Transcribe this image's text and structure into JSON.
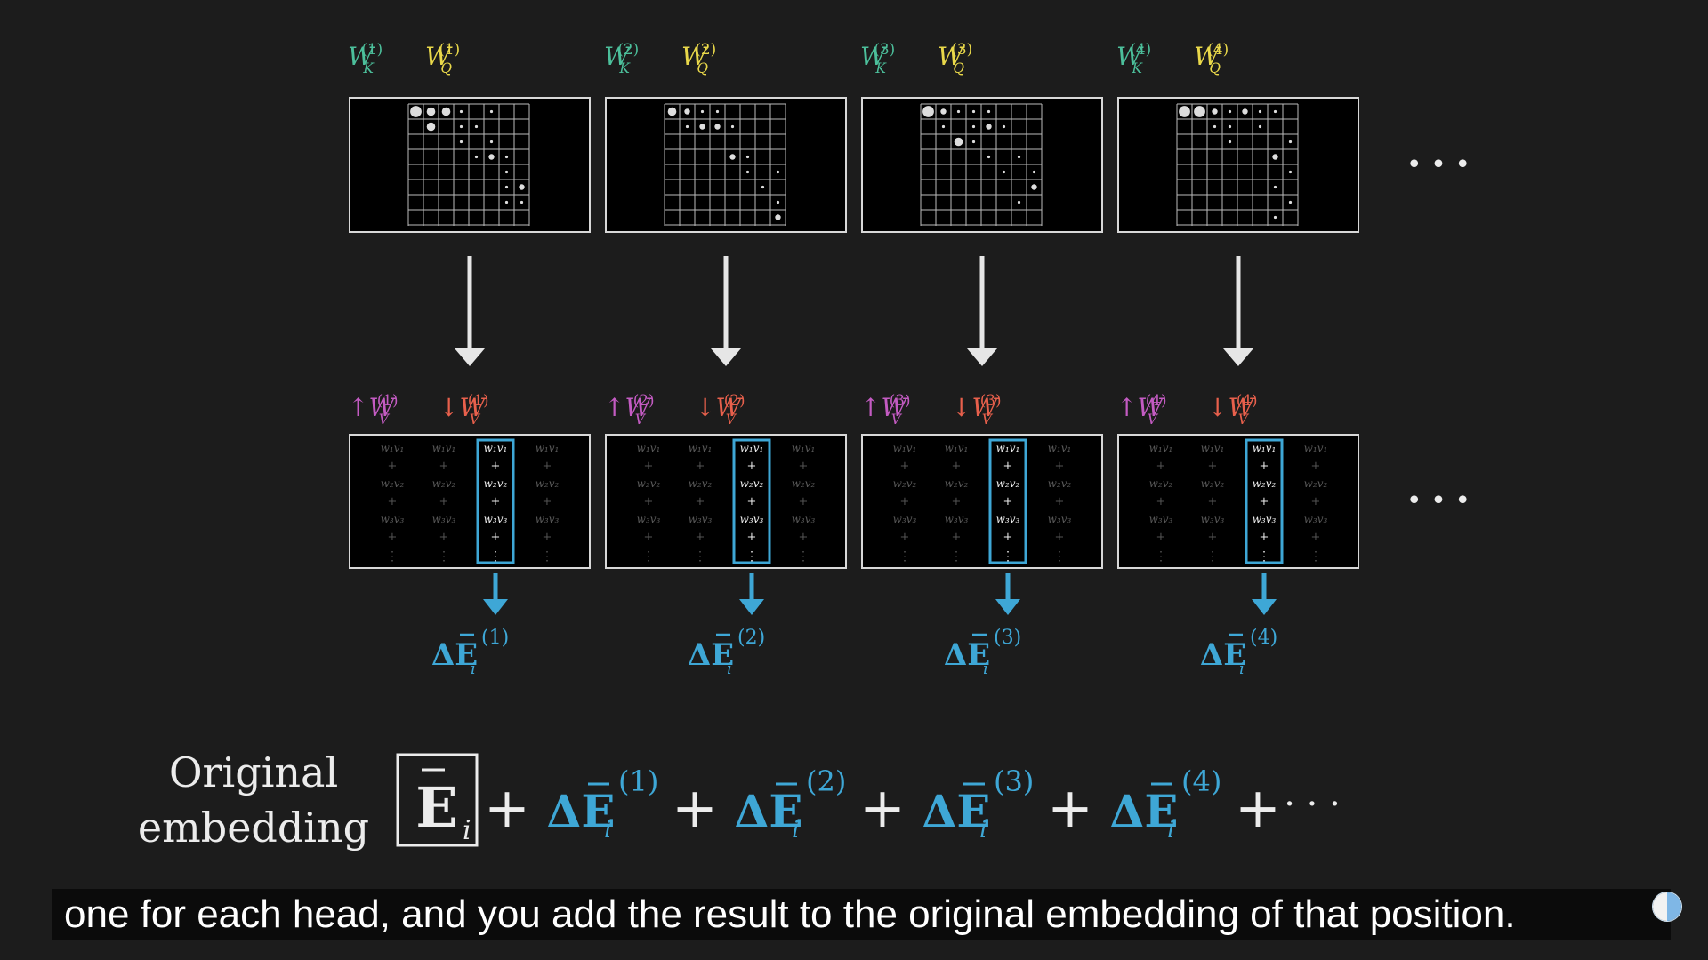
{
  "heads": [
    {
      "n": "(1)",
      "wk": "W",
      "wk_sub": "K",
      "wq": "W",
      "wq_sub": "Q",
      "vu": "↑W",
      "vu_sub": "V",
      "vd": "↓W",
      "vd_sub": "V",
      "de": "ΔE",
      "de_sub": "i"
    },
    {
      "n": "(2)",
      "wk": "W",
      "wk_sub": "K",
      "wq": "W",
      "wq_sub": "Q",
      "vu": "↑W",
      "vu_sub": "V",
      "vd": "↓W",
      "vd_sub": "V",
      "de": "ΔE",
      "de_sub": "i"
    },
    {
      "n": "(3)",
      "wk": "W",
      "wk_sub": "K",
      "wq": "W",
      "wq_sub": "Q",
      "vu": "↑W",
      "vu_sub": "V",
      "vd": "↓W",
      "vd_sub": "V",
      "de": "ΔE",
      "de_sub": "i"
    },
    {
      "n": "(4)",
      "wk": "W",
      "wk_sub": "K",
      "wq": "W",
      "wq_sub": "Q",
      "vu": "↑W",
      "vu_sub": "V",
      "vd": "↓W",
      "vd_sub": "V",
      "de": "ΔE",
      "de_sub": "i"
    }
  ],
  "value_terms": [
    "w₁v₁",
    "w₂v₂",
    "w₃v₃"
  ],
  "plus": "+",
  "vdots": "⋮",
  "ellipsis": "• • •",
  "equation": {
    "base": "E",
    "base_sub": "i",
    "plus": "+",
    "terms": [
      {
        "label": "ΔE",
        "sub": "i",
        "sup": "(1)"
      },
      {
        "label": "ΔE",
        "sub": "i",
        "sup": "(2)"
      },
      {
        "label": "ΔE",
        "sub": "i",
        "sup": "(3)"
      },
      {
        "label": "ΔE",
        "sub": "i",
        "sup": "(4)"
      }
    ],
    "tail": "· · ·"
  },
  "original_label": {
    "line1": "Original",
    "line2": "embedding"
  },
  "caption": "one for each head, and you add the result to the original embedding of that position.",
  "colors": {
    "key": "#4cbf9b",
    "query": "#e9d84a",
    "value_up": "#c35bc2",
    "value_down": "#e8604c",
    "delta": "#3ea7d6",
    "arrow": "#e6e6e6",
    "frame": "#d8d8d8"
  }
}
